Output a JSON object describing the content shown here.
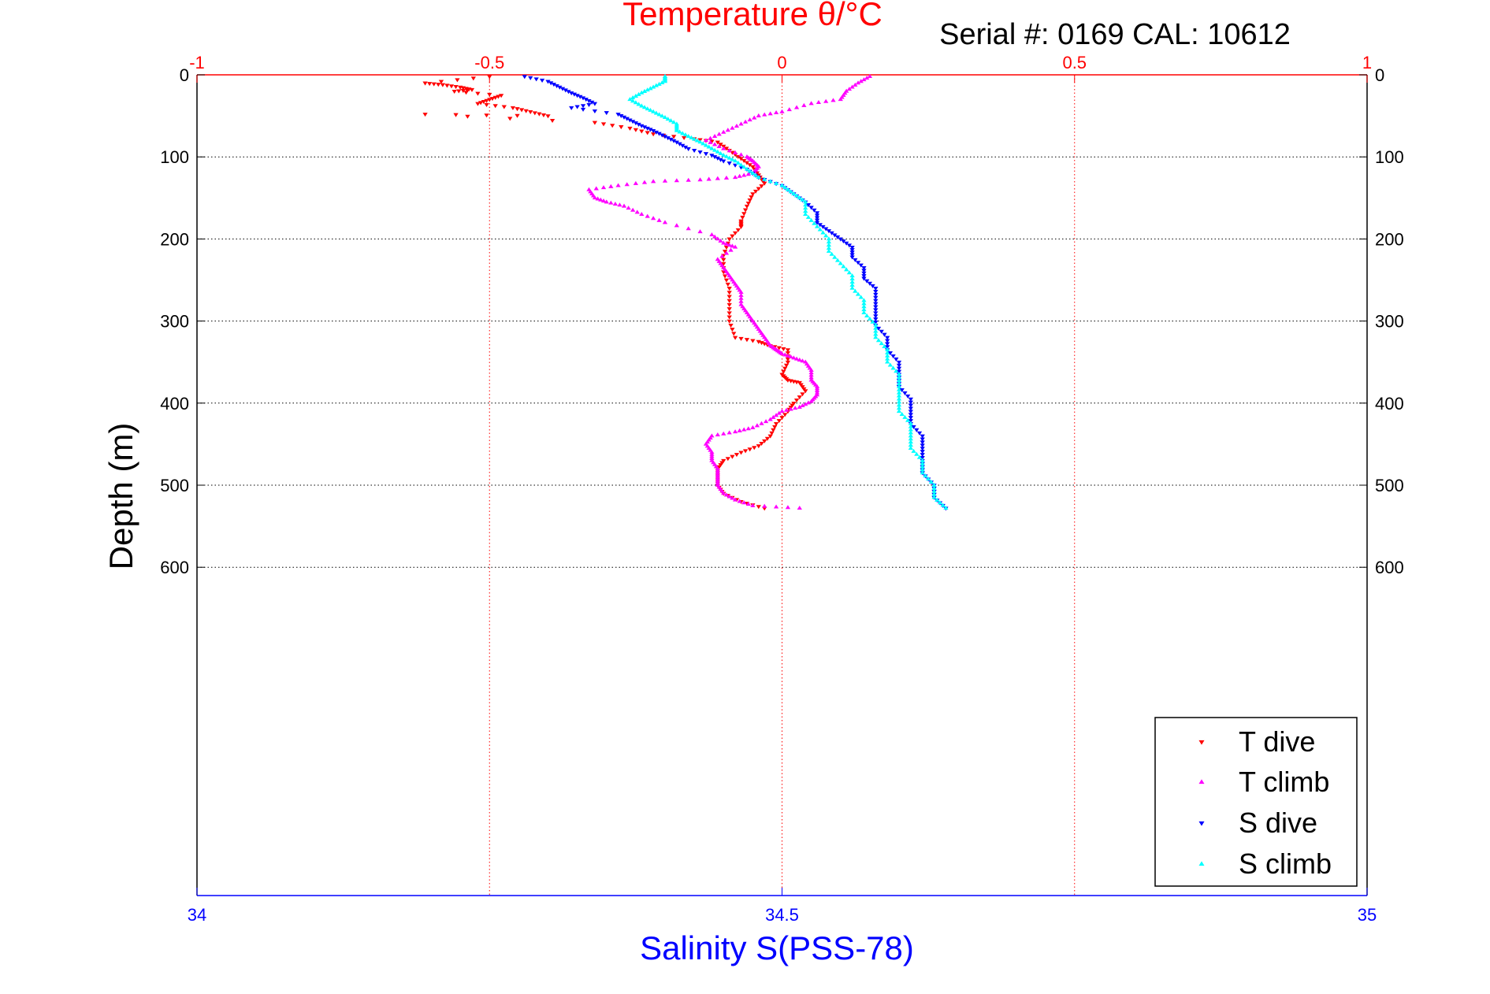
{
  "chart_data": {
    "type": "scatter",
    "title": "Temperature θ/°C",
    "subtitle": "Serial #: 0169 CAL: 10612",
    "xlabel_top": "Temperature θ/°C",
    "xlabel_bottom": "Salinity S(PSS-78)",
    "ylabel": "Depth (m)",
    "x_top_ticks": [
      "-1",
      "-0.5",
      "0",
      "0.5",
      "1"
    ],
    "x_top_lim": [
      -1,
      1
    ],
    "x_bottom_ticks": [
      "34",
      "34.5",
      "35"
    ],
    "x_bottom_lim": [
      34,
      35
    ],
    "y_ticks": [
      "0",
      "100",
      "200",
      "300",
      "400",
      "500",
      "600"
    ],
    "ylim": [
      0,
      1000
    ],
    "y_reversed": true,
    "grid": true,
    "legend_position": "bottom-right",
    "series": [
      {
        "name": "T dive",
        "axis": "temperature",
        "color": "#ff0000",
        "marker": "triangle-down",
        "points": [
          [
            -0.5,
            2
          ],
          [
            -0.61,
            10
          ],
          [
            -0.58,
            12
          ],
          [
            -0.55,
            15
          ],
          [
            -0.53,
            18
          ],
          [
            -0.56,
            20
          ],
          [
            -0.48,
            25
          ],
          [
            -0.5,
            30
          ],
          [
            -0.52,
            35
          ],
          [
            -0.46,
            40
          ],
          [
            -0.43,
            45
          ],
          [
            -0.4,
            50
          ],
          [
            -0.61,
            48
          ],
          [
            -0.32,
            58
          ],
          [
            -0.26,
            65
          ],
          [
            -0.22,
            72
          ],
          [
            -0.15,
            78
          ],
          [
            -0.11,
            82
          ],
          [
            -0.09,
            92
          ],
          [
            -0.07,
            102
          ],
          [
            -0.05,
            112
          ],
          [
            -0.04,
            122
          ],
          [
            -0.03,
            132
          ],
          [
            -0.05,
            145
          ],
          [
            -0.06,
            160
          ],
          [
            -0.07,
            178
          ],
          [
            -0.07,
            185
          ],
          [
            -0.09,
            200
          ],
          [
            -0.1,
            220
          ],
          [
            -0.1,
            240
          ],
          [
            -0.09,
            260
          ],
          [
            -0.09,
            280
          ],
          [
            -0.09,
            300
          ],
          [
            -0.08,
            320
          ],
          [
            -0.04,
            325
          ],
          [
            -0.02,
            330
          ],
          [
            0.01,
            335
          ],
          [
            0.01,
            350
          ],
          [
            0.0,
            365
          ],
          [
            0.01,
            372
          ],
          [
            0.03,
            375
          ],
          [
            0.04,
            385
          ],
          [
            0.02,
            400
          ],
          [
            0.01,
            410
          ],
          [
            -0.01,
            425
          ],
          [
            -0.02,
            440
          ],
          [
            -0.04,
            452
          ],
          [
            -0.07,
            460
          ],
          [
            -0.1,
            470
          ],
          [
            -0.11,
            480
          ],
          [
            -0.11,
            490
          ],
          [
            -0.11,
            500
          ],
          [
            -0.1,
            510
          ],
          [
            -0.07,
            520
          ],
          [
            -0.03,
            528
          ]
        ]
      },
      {
        "name": "T climb",
        "axis": "temperature",
        "color": "#ff00ff",
        "marker": "triangle-up",
        "points": [
          [
            0.03,
            528
          ],
          [
            -0.05,
            525
          ],
          [
            -0.08,
            518
          ],
          [
            -0.1,
            510
          ],
          [
            -0.11,
            500
          ],
          [
            -0.11,
            490
          ],
          [
            -0.11,
            480
          ],
          [
            -0.12,
            470
          ],
          [
            -0.12,
            460
          ],
          [
            -0.13,
            450
          ],
          [
            -0.12,
            440
          ],
          [
            -0.08,
            435
          ],
          [
            -0.05,
            430
          ],
          [
            -0.02,
            420
          ],
          [
            0.0,
            410
          ],
          [
            0.03,
            405
          ],
          [
            0.05,
            398
          ],
          [
            0.06,
            390
          ],
          [
            0.06,
            380
          ],
          [
            0.05,
            372
          ],
          [
            0.05,
            360
          ],
          [
            0.04,
            350
          ],
          [
            0.02,
            345
          ],
          [
            0.0,
            340
          ],
          [
            -0.01,
            335
          ],
          [
            -0.02,
            330
          ],
          [
            -0.03,
            320
          ],
          [
            -0.04,
            310
          ],
          [
            -0.05,
            300
          ],
          [
            -0.06,
            290
          ],
          [
            -0.07,
            280
          ],
          [
            -0.07,
            265
          ],
          [
            -0.08,
            255
          ],
          [
            -0.09,
            245
          ],
          [
            -0.1,
            235
          ],
          [
            -0.11,
            225
          ],
          [
            -0.08,
            210
          ],
          [
            -0.1,
            205
          ],
          [
            -0.12,
            195
          ],
          [
            -0.2,
            180
          ],
          [
            -0.24,
            170
          ],
          [
            -0.27,
            160
          ],
          [
            -0.3,
            155
          ],
          [
            -0.32,
            150
          ],
          [
            -0.33,
            140
          ],
          [
            -0.28,
            135
          ],
          [
            -0.22,
            130
          ],
          [
            -0.14,
            128
          ],
          [
            -0.08,
            125
          ],
          [
            -0.05,
            120
          ],
          [
            -0.04,
            112
          ],
          [
            -0.05,
            105
          ],
          [
            -0.06,
            100
          ],
          [
            -0.1,
            90
          ],
          [
            -0.13,
            80
          ],
          [
            -0.1,
            70
          ],
          [
            -0.07,
            60
          ],
          [
            -0.04,
            50
          ],
          [
            0.0,
            45
          ],
          [
            0.05,
            35
          ],
          [
            0.1,
            30
          ],
          [
            0.11,
            20
          ],
          [
            0.13,
            10
          ],
          [
            0.15,
            2
          ]
        ]
      },
      {
        "name": "S dive",
        "axis": "salinity",
        "color": "#0000ff",
        "marker": "triangle-down",
        "points": [
          [
            34.28,
            2
          ],
          [
            34.3,
            8
          ],
          [
            34.31,
            15
          ],
          [
            34.32,
            22
          ],
          [
            34.33,
            28
          ],
          [
            34.34,
            35
          ],
          [
            34.32,
            40
          ],
          [
            34.36,
            48
          ],
          [
            34.37,
            55
          ],
          [
            34.38,
            62
          ],
          [
            34.39,
            68
          ],
          [
            34.4,
            75
          ],
          [
            34.41,
            82
          ],
          [
            34.42,
            90
          ],
          [
            34.44,
            98
          ],
          [
            34.45,
            105
          ],
          [
            34.47,
            115
          ],
          [
            34.48,
            125
          ],
          [
            34.5,
            135
          ],
          [
            34.51,
            145
          ],
          [
            34.52,
            155
          ],
          [
            34.53,
            168
          ],
          [
            34.53,
            180
          ],
          [
            34.54,
            190
          ],
          [
            34.55,
            200
          ],
          [
            34.56,
            210
          ],
          [
            34.56,
            222
          ],
          [
            34.57,
            235
          ],
          [
            34.57,
            248
          ],
          [
            34.58,
            260
          ],
          [
            34.58,
            275
          ],
          [
            34.58,
            290
          ],
          [
            34.58,
            305
          ],
          [
            34.59,
            320
          ],
          [
            34.59,
            335
          ],
          [
            34.6,
            350
          ],
          [
            34.6,
            365
          ],
          [
            34.6,
            380
          ],
          [
            34.61,
            395
          ],
          [
            34.61,
            410
          ],
          [
            34.61,
            425
          ],
          [
            34.62,
            440
          ],
          [
            34.62,
            455
          ],
          [
            34.62,
            470
          ],
          [
            34.62,
            485
          ],
          [
            34.63,
            500
          ],
          [
            34.63,
            515
          ],
          [
            34.64,
            528
          ]
        ]
      },
      {
        "name": "S climb",
        "axis": "salinity",
        "color": "#00ffff",
        "marker": "triangle-up",
        "points": [
          [
            34.64,
            528
          ],
          [
            34.63,
            515
          ],
          [
            34.63,
            500
          ],
          [
            34.62,
            485
          ],
          [
            34.62,
            470
          ],
          [
            34.61,
            455
          ],
          [
            34.61,
            440
          ],
          [
            34.61,
            425
          ],
          [
            34.6,
            410
          ],
          [
            34.6,
            395
          ],
          [
            34.6,
            380
          ],
          [
            34.6,
            365
          ],
          [
            34.59,
            350
          ],
          [
            34.59,
            335
          ],
          [
            34.58,
            320
          ],
          [
            34.58,
            305
          ],
          [
            34.57,
            290
          ],
          [
            34.57,
            275
          ],
          [
            34.56,
            260
          ],
          [
            34.56,
            245
          ],
          [
            34.55,
            230
          ],
          [
            34.54,
            215
          ],
          [
            34.54,
            200
          ],
          [
            34.53,
            185
          ],
          [
            34.52,
            170
          ],
          [
            34.52,
            155
          ],
          [
            34.51,
            145
          ],
          [
            34.5,
            135
          ],
          [
            34.48,
            125
          ],
          [
            34.47,
            115
          ],
          [
            34.46,
            105
          ],
          [
            34.45,
            98
          ],
          [
            34.44,
            90
          ],
          [
            34.43,
            82
          ],
          [
            34.42,
            75
          ],
          [
            34.41,
            68
          ],
          [
            34.41,
            60
          ],
          [
            34.4,
            52
          ],
          [
            34.39,
            45
          ],
          [
            34.38,
            38
          ],
          [
            34.37,
            30
          ],
          [
            34.38,
            22
          ],
          [
            34.39,
            15
          ],
          [
            34.4,
            8
          ],
          [
            34.4,
            2
          ]
        ]
      }
    ]
  }
}
